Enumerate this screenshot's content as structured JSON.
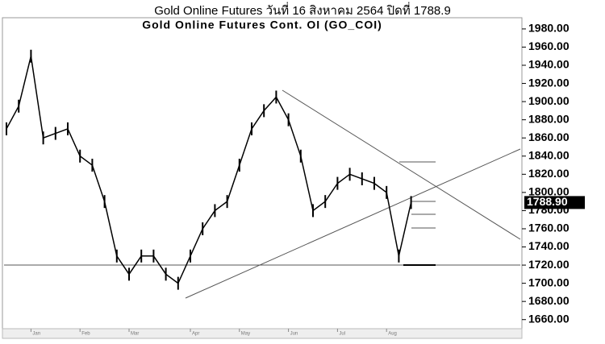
{
  "chart_data": {
    "type": "line",
    "title": "Gold Online Futures วันที่   16 สิงหาคม   2564 ปิดที่   1788.9",
    "subtitle": "Gold Online Futures Cont. OI (GO_COI)",
    "categories": [
      null,
      null,
      "Jan",
      null,
      null,
      null,
      "Feb",
      null,
      null,
      null,
      "Mar",
      null,
      null,
      null,
      null,
      "Apr",
      null,
      null,
      null,
      "May",
      null,
      null,
      null,
      "Jun",
      null,
      null,
      null,
      "Jul",
      null,
      null,
      null,
      "Aug",
      null,
      null
    ],
    "values": [
      1870,
      1895,
      1950,
      1860,
      1865,
      1870,
      1840,
      1830,
      1790,
      1730,
      1710,
      1730,
      1730,
      1710,
      1700,
      1730,
      1760,
      1780,
      1790,
      1830,
      1870,
      1890,
      1905,
      1880,
      1840,
      1780,
      1790,
      1810,
      1820,
      1815,
      1810,
      1800,
      1730,
      1788.9
    ],
    "last_label": {
      "value": 1788.9,
      "label": "1788.90"
    },
    "color": "#000000",
    "ylim": [
      1650,
      1995
    ],
    "yticks": [
      {
        "value": 1660,
        "label": "1660.00"
      },
      {
        "value": 1680,
        "label": "1680.00"
      },
      {
        "value": 1700,
        "label": "1700.00"
      },
      {
        "value": 1720,
        "label": "1720.00"
      },
      {
        "value": 1740,
        "label": "1740.00"
      },
      {
        "value": 1760,
        "label": "1760.00"
      },
      {
        "value": 1780,
        "label": "1780.00"
      },
      {
        "value": 1800,
        "label": "1800.00"
      },
      {
        "value": 1820,
        "label": "1820.00"
      },
      {
        "value": 1840,
        "label": "1840.00"
      },
      {
        "value": 1860,
        "label": "1860.00"
      },
      {
        "value": 1880,
        "label": "1880.00"
      },
      {
        "value": 1900,
        "label": "1900.00"
      },
      {
        "value": 1920,
        "label": "1920.00"
      },
      {
        "value": 1940,
        "label": "1940.00"
      },
      {
        "value": 1960,
        "label": "1960.00"
      },
      {
        "value": 1980,
        "label": "1980.00"
      }
    ]
  }
}
